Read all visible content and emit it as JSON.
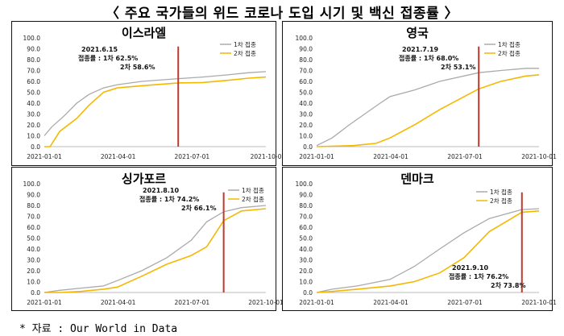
{
  "header": {
    "title": "〈 주요 국가들의 위드 코로나 도입 시기 및 백신 접종률 〉"
  },
  "footer": {
    "source": "* 자료 : Our World in Data"
  },
  "chart_data": [
    {
      "type": "line",
      "title": "이스라엘",
      "ylim": [
        0,
        100
      ],
      "yticks": [
        "0.0",
        "10.0",
        "20.0",
        "30.0",
        "40.0",
        "50.0",
        "60.0",
        "70.0",
        "80.0",
        "90.0",
        "100.0"
      ],
      "xlabels": [
        "2021-01-01",
        "2021-04-01",
        "2021-07-01",
        "2021-10-0"
      ],
      "xlim": [
        "2021-01-01",
        "2021-10-01"
      ],
      "legend": [
        "1차 접종",
        "2차 접종"
      ],
      "legend_position": "top-right",
      "colors": {
        "first": "#aaaaaa",
        "second": "#f5b800",
        "marker": "#c0392b"
      },
      "annotation": [
        "2021.6.15",
        "접종률 : 1차 62.5%",
        "2차 58.6%"
      ],
      "marker_date": "2021-06-15",
      "series": [
        {
          "name": "1차 접종",
          "points": [
            [
              "2021-01-01",
              10
            ],
            [
              "2021-01-10",
              18
            ],
            [
              "2021-01-25",
              28
            ],
            [
              "2021-02-10",
              40
            ],
            [
              "2021-02-25",
              48
            ],
            [
              "2021-03-15",
              54
            ],
            [
              "2021-04-01",
              57
            ],
            [
              "2021-05-01",
              60
            ],
            [
              "2021-06-15",
              62.5
            ],
            [
              "2021-07-15",
              64
            ],
            [
              "2021-08-15",
              66
            ],
            [
              "2021-09-10",
              68
            ],
            [
              "2021-10-01",
              69
            ]
          ]
        },
        {
          "name": "2차 접종",
          "points": [
            [
              "2021-01-01",
              0
            ],
            [
              "2021-01-08",
              0
            ],
            [
              "2021-01-20",
              14
            ],
            [
              "2021-02-10",
              26
            ],
            [
              "2021-02-25",
              38
            ],
            [
              "2021-03-15",
              50
            ],
            [
              "2021-04-01",
              54
            ],
            [
              "2021-05-01",
              56
            ],
            [
              "2021-06-15",
              58.6
            ],
            [
              "2021-07-15",
              59
            ],
            [
              "2021-08-15",
              61
            ],
            [
              "2021-09-10",
              63
            ],
            [
              "2021-10-01",
              64
            ]
          ]
        }
      ]
    },
    {
      "type": "line",
      "title": "영국",
      "ylim": [
        0,
        100
      ],
      "yticks": [
        "0.0",
        "10.0",
        "20.0",
        "30.0",
        "40.0",
        "50.0",
        "60.0",
        "70.0",
        "80.0",
        "90.0",
        "100.0"
      ],
      "xlabels": [
        "2021-01-01",
        "2021-04-01",
        "2021-07-01",
        "2021-10-01"
      ],
      "xlim": [
        "2021-01-01",
        "2021-10-01"
      ],
      "legend": [
        "1차 접종",
        "2차 접종"
      ],
      "legend_position": "top-right",
      "colors": {
        "first": "#aaaaaa",
        "second": "#f5b800",
        "marker": "#c0392b"
      },
      "annotation": [
        "2021.7.19",
        "접종률 : 1차 68.0%",
        "2차 53.1%"
      ],
      "marker_date": "2021-07-19",
      "series": [
        {
          "name": "1차 접종",
          "points": [
            [
              "2021-01-01",
              1
            ],
            [
              "2021-01-20",
              8
            ],
            [
              "2021-02-10",
              20
            ],
            [
              "2021-03-01",
              30
            ],
            [
              "2021-03-20",
              40
            ],
            [
              "2021-04-01",
              46
            ],
            [
              "2021-05-01",
              52
            ],
            [
              "2021-06-01",
              60
            ],
            [
              "2021-07-19",
              68
            ],
            [
              "2021-08-15",
              70
            ],
            [
              "2021-09-15",
              72
            ],
            [
              "2021-10-01",
              72
            ]
          ]
        },
        {
          "name": "2차 접종",
          "points": [
            [
              "2021-01-01",
              0
            ],
            [
              "2021-02-15",
              1
            ],
            [
              "2021-03-15",
              3
            ],
            [
              "2021-04-01",
              8
            ],
            [
              "2021-05-01",
              20
            ],
            [
              "2021-06-01",
              34
            ],
            [
              "2021-07-01",
              46
            ],
            [
              "2021-07-19",
              53.1
            ],
            [
              "2021-08-15",
              60
            ],
            [
              "2021-09-15",
              65
            ],
            [
              "2021-10-01",
              66
            ]
          ]
        }
      ]
    },
    {
      "type": "line",
      "title": "싱가포르",
      "ylim": [
        0,
        100
      ],
      "yticks": [
        "0.0",
        "10.0",
        "20.0",
        "30.0",
        "40.0",
        "50.0",
        "60.0",
        "70.0",
        "80.0",
        "90.0",
        "100.0"
      ],
      "xlabels": [
        "2021-01-01",
        "2021-04-01",
        "2021-07-01",
        "2021-10-01"
      ],
      "xlim": [
        "2021-01-01",
        "2021-10-01"
      ],
      "legend": [
        "1차 접종",
        "2차 접종"
      ],
      "legend_position": "top-right",
      "colors": {
        "first": "#aaaaaa",
        "second": "#f5b800",
        "marker": "#c0392b"
      },
      "annotation": [
        "2021.8.10",
        "접종률 : 1차 74.2%",
        "2차 66.1%"
      ],
      "marker_date": "2021-08-10",
      "series": [
        {
          "name": "1차 접종",
          "points": [
            [
              "2021-01-01",
              0
            ],
            [
              "2021-01-20",
              2
            ],
            [
              "2021-02-15",
              4
            ],
            [
              "2021-03-15",
              6
            ],
            [
              "2021-04-01",
              11
            ],
            [
              "2021-05-01",
              20
            ],
            [
              "2021-06-01",
              32
            ],
            [
              "2021-07-01",
              48
            ],
            [
              "2021-07-20",
              65
            ],
            [
              "2021-08-10",
              74.2
            ],
            [
              "2021-09-01",
              78
            ],
            [
              "2021-10-01",
              80
            ]
          ]
        },
        {
          "name": "2차 접종",
          "points": [
            [
              "2021-01-01",
              0
            ],
            [
              "2021-01-20",
              0
            ],
            [
              "2021-02-15",
              1
            ],
            [
              "2021-03-15",
              3
            ],
            [
              "2021-04-01",
              5
            ],
            [
              "2021-05-01",
              15
            ],
            [
              "2021-06-01",
              26
            ],
            [
              "2021-07-01",
              34
            ],
            [
              "2021-07-20",
              42
            ],
            [
              "2021-08-10",
              66.1
            ],
            [
              "2021-09-01",
              75
            ],
            [
              "2021-10-01",
              77
            ]
          ]
        }
      ]
    },
    {
      "type": "line",
      "title": "덴마크",
      "ylim": [
        0,
        100
      ],
      "yticks": [
        "0.0",
        "10.0",
        "20.0",
        "30.0",
        "40.0",
        "50.0",
        "60.0",
        "70.0",
        "80.0",
        "90.0",
        "100.0"
      ],
      "xlabels": [
        "2021-01-01",
        "2021-04-01",
        "2021-07-01",
        "2021-10-01"
      ],
      "xlim": [
        "2021-01-01",
        "2021-10-01"
      ],
      "legend": [
        "1차 접종",
        "2차 접종"
      ],
      "legend_position": "top-right",
      "colors": {
        "first": "#aaaaaa",
        "second": "#f5b800",
        "marker": "#c0392b"
      },
      "annotation": [
        "2021.9.10",
        "접종률 : 1차 76.2%",
        "2차 73.8%"
      ],
      "marker_date": "2021-09-10",
      "series": [
        {
          "name": "1차 접종",
          "points": [
            [
              "2021-01-01",
              0
            ],
            [
              "2021-01-20",
              3
            ],
            [
              "2021-02-20",
              6
            ],
            [
              "2021-04-01",
              12
            ],
            [
              "2021-05-01",
              24
            ],
            [
              "2021-06-01",
              40
            ],
            [
              "2021-07-01",
              55
            ],
            [
              "2021-08-01",
              68
            ],
            [
              "2021-09-10",
              76.2
            ],
            [
              "2021-10-01",
              77
            ]
          ]
        },
        {
          "name": "2차 접종",
          "points": [
            [
              "2021-01-01",
              0
            ],
            [
              "2021-01-20",
              1
            ],
            [
              "2021-02-20",
              3
            ],
            [
              "2021-04-01",
              6
            ],
            [
              "2021-05-01",
              10
            ],
            [
              "2021-06-01",
              18
            ],
            [
              "2021-07-01",
              32
            ],
            [
              "2021-08-01",
              56
            ],
            [
              "2021-09-10",
              73.8
            ],
            [
              "2021-10-01",
              75
            ]
          ]
        }
      ]
    }
  ]
}
